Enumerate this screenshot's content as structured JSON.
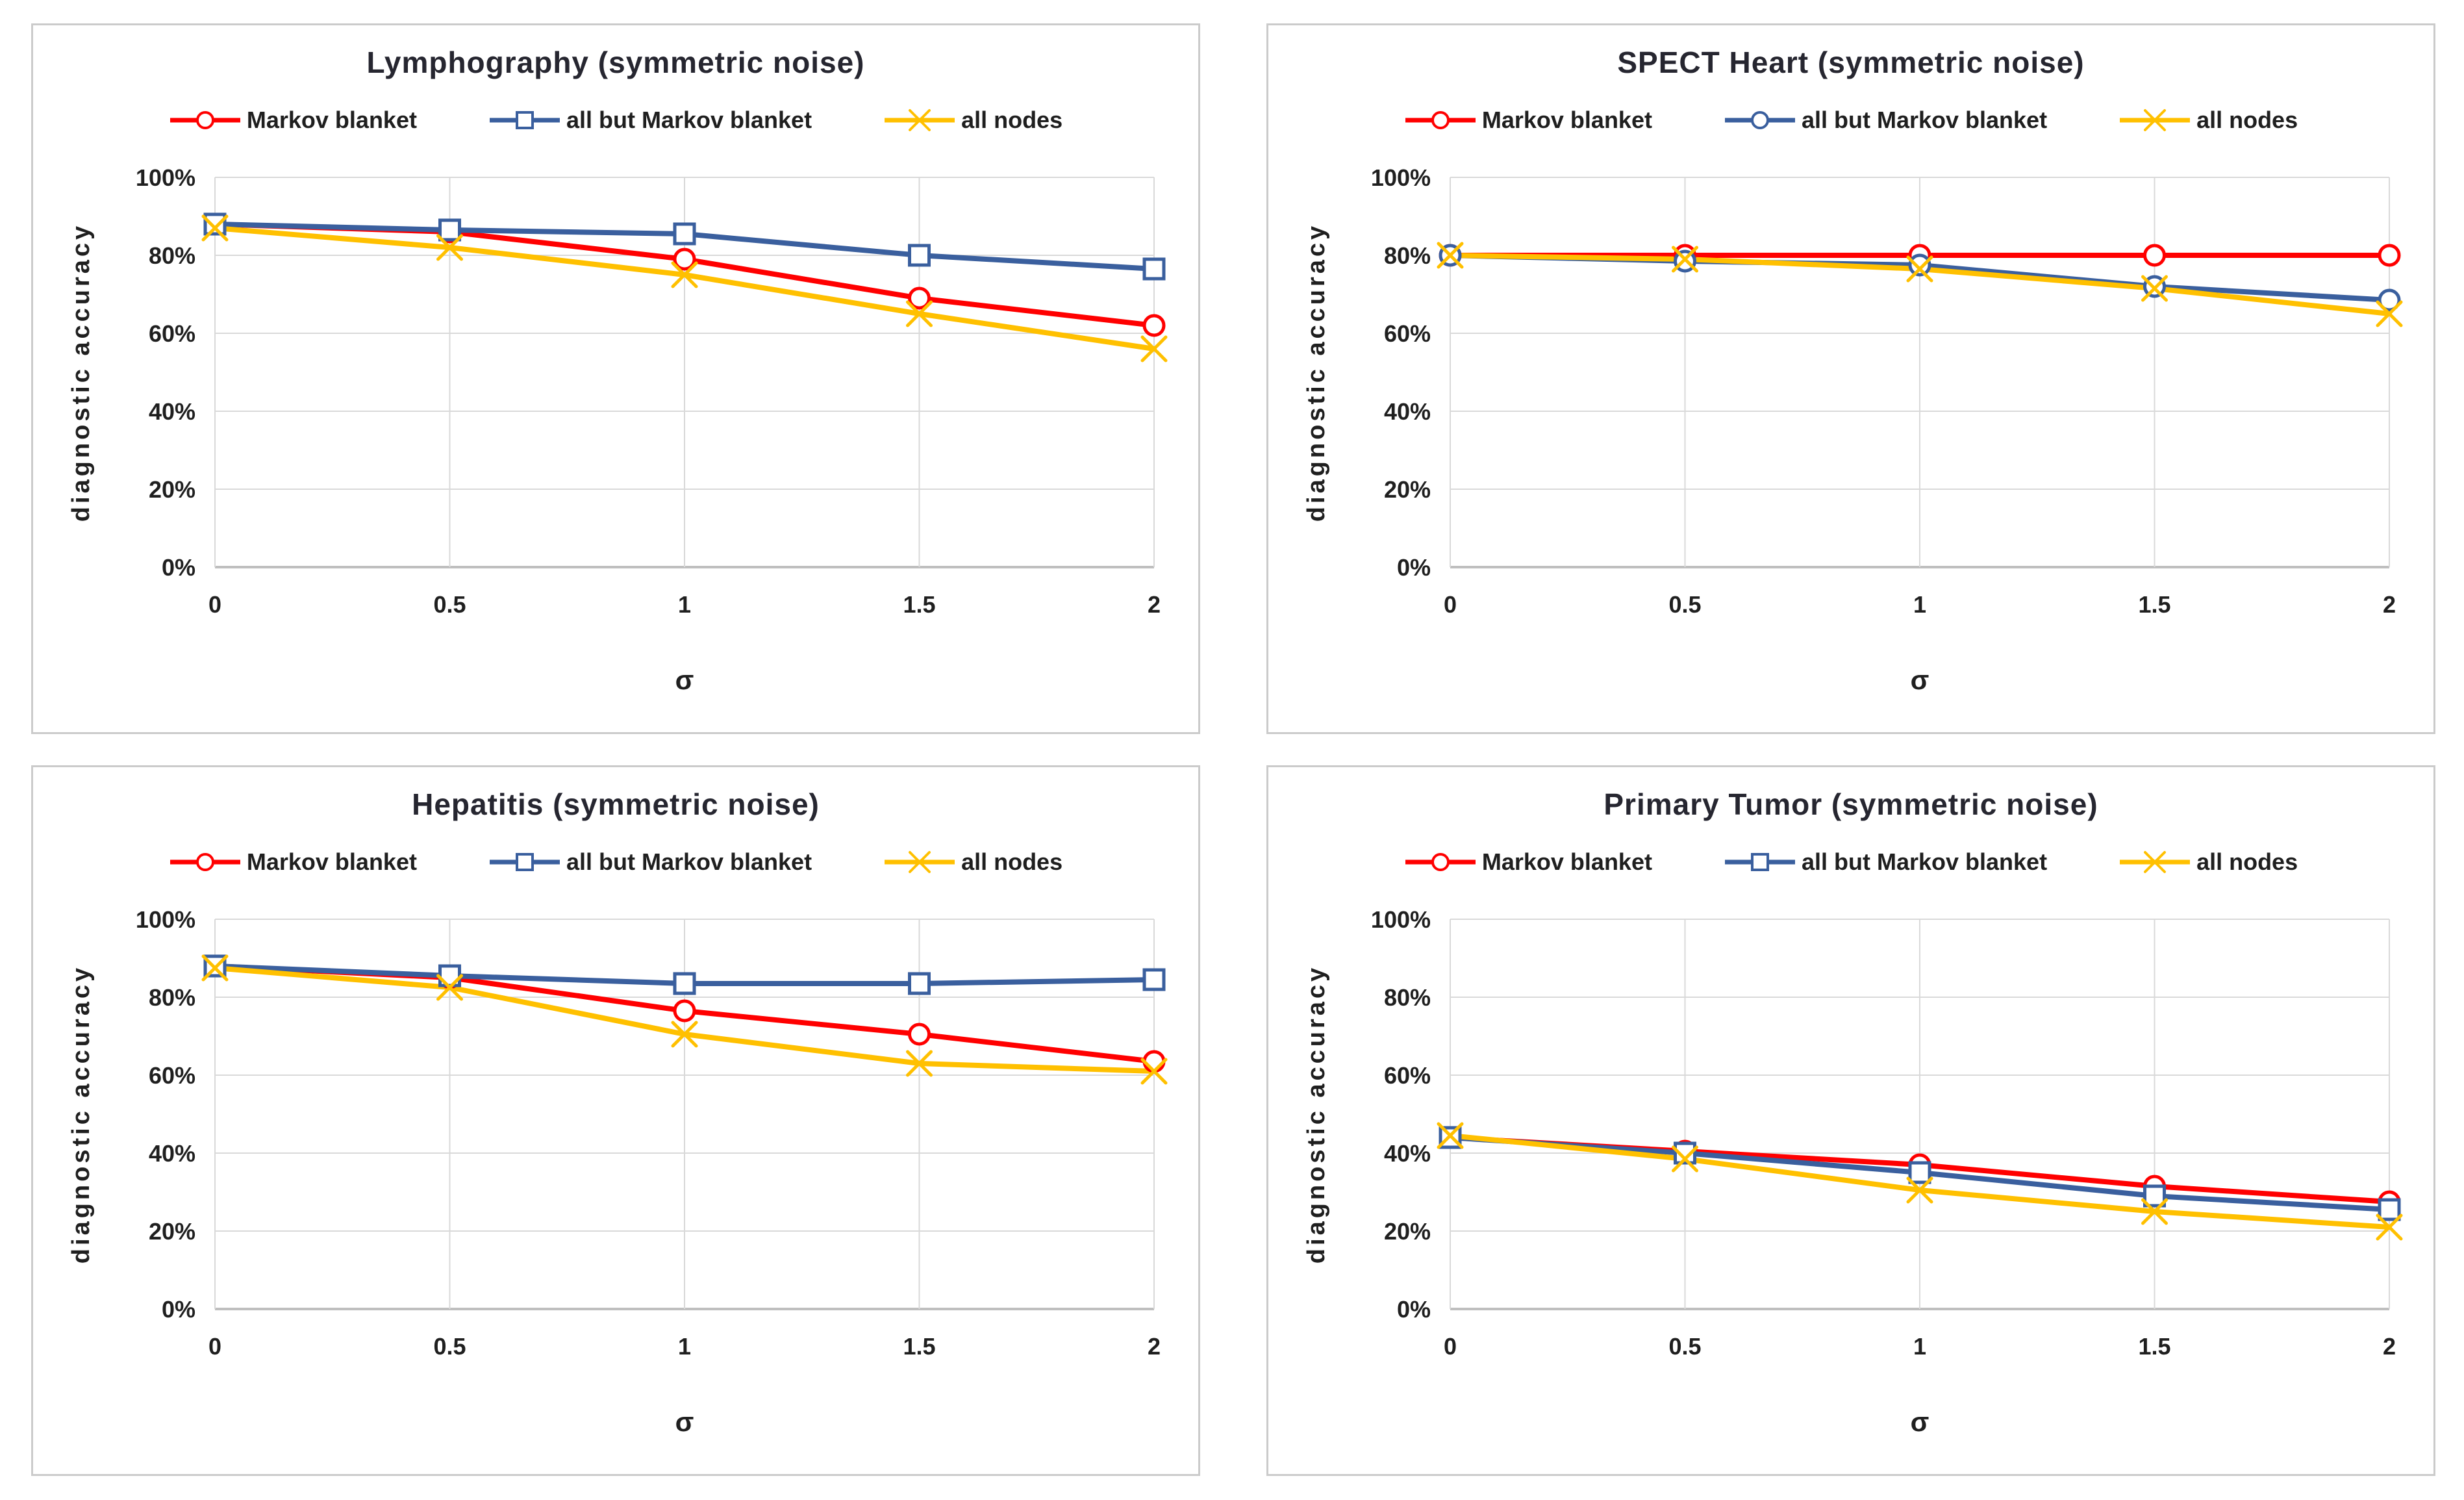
{
  "page": {
    "background": "#FFFFFF"
  },
  "colors": {
    "panel_border": "#CBCBCB",
    "grid": "#D9D9D9",
    "axis_line": "#BFBFBF",
    "title_text": "#262630",
    "tick_text": "#1F1F1F",
    "legend_text": "#1F1F1F",
    "series_red": "#FF0000",
    "series_blue": "#3A5F9E",
    "series_gold": "#FFC000"
  },
  "chart_data": [
    {
      "type": "line",
      "title": "Lymphography  (symmetric noise)",
      "xlabel": "σ",
      "ylabel": "diagnostic accuracy",
      "x": [
        0,
        0.5,
        1,
        1.5,
        2
      ],
      "xtick_labels": [
        "0",
        "0.5",
        "1",
        "1.5",
        "2"
      ],
      "ytick_values": [
        0,
        20,
        40,
        60,
        80,
        100
      ],
      "ytick_labels": [
        "0%",
        "20%",
        "40%",
        "60%",
        "80%",
        "100%"
      ],
      "ylim": [
        0,
        100
      ],
      "xlim": [
        0,
        2
      ],
      "grid": true,
      "legend_position": "top",
      "series": [
        {
          "name": "Markov blanket",
          "color": "#FF0000",
          "marker": "circle",
          "values": [
            88,
            86,
            79,
            69,
            62
          ]
        },
        {
          "name": "all but Markov blanket",
          "color": "#3A5F9E",
          "marker": "square",
          "values": [
            88,
            86.5,
            85.5,
            80,
            76.5
          ]
        },
        {
          "name": "all nodes",
          "color": "#FFC000",
          "marker": "x",
          "values": [
            87,
            82,
            75,
            65,
            56
          ]
        }
      ]
    },
    {
      "type": "line",
      "title": "SPECT Heart (symmetric noise)",
      "xlabel": "σ",
      "ylabel": "diagnostic accuracy",
      "x": [
        0,
        0.5,
        1,
        1.5,
        2
      ],
      "xtick_labels": [
        "0",
        "0.5",
        "1",
        "1.5",
        "2"
      ],
      "ytick_values": [
        0,
        20,
        40,
        60,
        80,
        100
      ],
      "ytick_labels": [
        "0%",
        "20%",
        "40%",
        "60%",
        "80%",
        "100%"
      ],
      "ylim": [
        0,
        100
      ],
      "xlim": [
        0,
        2
      ],
      "grid": true,
      "legend_position": "top",
      "series": [
        {
          "name": "Markov blanket",
          "color": "#FF0000",
          "marker": "circle",
          "values": [
            80,
            80,
            80,
            80,
            80
          ]
        },
        {
          "name": "all but Markov blanket",
          "color": "#3A5F9E",
          "marker": "circle",
          "values": [
            80,
            78.5,
            77.5,
            72,
            68.5
          ]
        },
        {
          "name": "all nodes",
          "color": "#FFC000",
          "marker": "x",
          "values": [
            80,
            79,
            76.5,
            71.5,
            65
          ]
        }
      ]
    },
    {
      "type": "line",
      "title": "Hepatitis (symmetric noise)",
      "xlabel": "σ",
      "ylabel": "diagnostic accuracy",
      "x": [
        0,
        0.5,
        1,
        1.5,
        2
      ],
      "xtick_labels": [
        "0",
        "0.5",
        "1",
        "1.5",
        "2"
      ],
      "ytick_values": [
        0,
        20,
        40,
        60,
        80,
        100
      ],
      "ytick_labels": [
        "0%",
        "20%",
        "40%",
        "60%",
        "80%",
        "100%"
      ],
      "ylim": [
        0,
        100
      ],
      "xlim": [
        0,
        2
      ],
      "grid": true,
      "legend_position": "top",
      "series": [
        {
          "name": "Markov blanket",
          "color": "#FF0000",
          "marker": "circle",
          "values": [
            88,
            85,
            76.5,
            70.5,
            63.5
          ]
        },
        {
          "name": "all but Markov blanket",
          "color": "#3A5F9E",
          "marker": "square",
          "values": [
            88,
            85.5,
            83.5,
            83.5,
            84.5
          ]
        },
        {
          "name": "all nodes",
          "color": "#FFC000",
          "marker": "x",
          "values": [
            87.5,
            82.5,
            70.5,
            63,
            61
          ]
        }
      ]
    },
    {
      "type": "line",
      "title": "Primary Tumor (symmetric noise)",
      "xlabel": "σ",
      "ylabel": "diagnostic accuracy",
      "x": [
        0,
        0.5,
        1,
        1.5,
        2
      ],
      "xtick_labels": [
        "0",
        "0.5",
        "1",
        "1.5",
        "2"
      ],
      "ytick_values": [
        0,
        20,
        40,
        60,
        80,
        100
      ],
      "ytick_labels": [
        "0%",
        "20%",
        "40%",
        "60%",
        "80%",
        "100%"
      ],
      "ylim": [
        0,
        100
      ],
      "xlim": [
        0,
        2
      ],
      "grid": true,
      "legend_position": "top",
      "series": [
        {
          "name": "Markov blanket",
          "color": "#FF0000",
          "marker": "circle",
          "values": [
            44,
            40.5,
            37,
            31.5,
            27.5
          ]
        },
        {
          "name": "all but Markov blanket",
          "color": "#3A5F9E",
          "marker": "square",
          "values": [
            44,
            40,
            35,
            29,
            25.5
          ]
        },
        {
          "name": "all nodes",
          "color": "#FFC000",
          "marker": "x",
          "values": [
            44.5,
            38.5,
            30.5,
            25,
            21
          ]
        }
      ]
    }
  ]
}
